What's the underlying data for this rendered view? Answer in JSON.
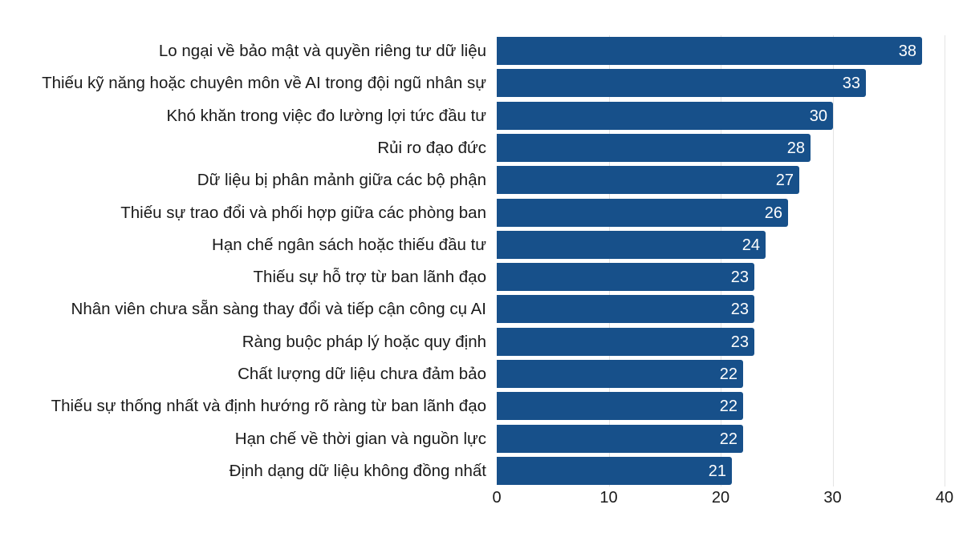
{
  "chart_data": {
    "type": "bar",
    "orientation": "horizontal",
    "title": "",
    "xlabel": "",
    "ylabel": "",
    "xlim": [
      0,
      40
    ],
    "xticks": [
      0,
      10,
      20,
      30,
      40
    ],
    "grid": "vertical",
    "legend": null,
    "bar_color": "#17508a",
    "categories": [
      "Lo ngại về bảo mật và quyền riêng tư dữ liệu",
      "Thiếu kỹ năng hoặc chuyên môn về AI trong đội ngũ nhân sự",
      "Khó khăn trong việc đo lường lợi tức đầu tư",
      "Rủi ro đạo đức",
      "Dữ liệu bị phân mảnh giữa các bộ phận",
      "Thiếu sự trao đổi và phối hợp giữa các phòng ban",
      "Hạn chế ngân sách hoặc thiếu đầu tư",
      "Thiếu sự hỗ trợ từ ban lãnh đạo",
      "Nhân viên chưa sẵn sàng thay đổi và tiếp cận công cụ AI",
      "Ràng buộc pháp lý hoặc quy định",
      "Chất lượng dữ liệu chưa đảm bảo",
      "Thiếu sự thống nhất và định hướng rõ ràng từ ban lãnh đạo",
      "Hạn chế về thời gian và nguồn lực",
      "Định dạng dữ liệu không đồng nhất"
    ],
    "values": [
      38,
      33,
      30,
      28,
      27,
      26,
      24,
      23,
      23,
      23,
      22,
      22,
      22,
      21
    ]
  }
}
